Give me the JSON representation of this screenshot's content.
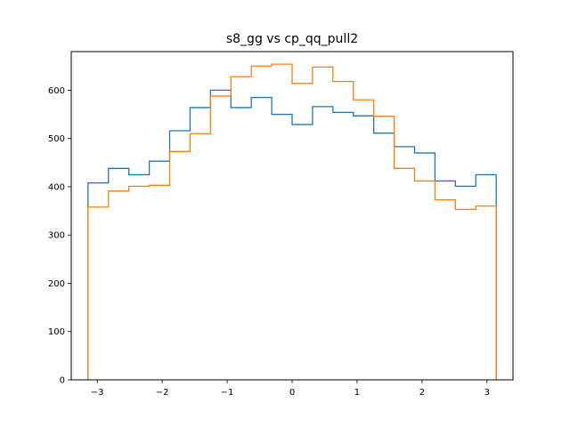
{
  "chart_data": {
    "type": "histogram",
    "title": "s8_gg vs cp_qq_pull2",
    "xlabel": "",
    "ylabel": "",
    "xlim": [
      -3.4,
      3.4
    ],
    "ylim": [
      0,
      680
    ],
    "x_ticks": [
      -3,
      -2,
      -1,
      0,
      1,
      2,
      3
    ],
    "x_tick_labels": [
      "−3",
      "−2",
      "−1",
      "0",
      "1",
      "2",
      "3"
    ],
    "y_ticks": [
      0,
      100,
      200,
      300,
      400,
      500,
      600
    ],
    "y_tick_labels": [
      "0",
      "100",
      "200",
      "300",
      "400",
      "500",
      "600"
    ],
    "grid": false,
    "bin_edges": [
      -3.1416,
      -2.8274,
      -2.5133,
      -2.1991,
      -1.885,
      -1.5708,
      -1.2566,
      -0.9425,
      -0.6283,
      -0.3142,
      0.0,
      0.3142,
      0.6283,
      0.9425,
      1.2566,
      1.5708,
      1.885,
      2.1991,
      2.5133,
      2.8274,
      3.1416
    ],
    "series": [
      {
        "color": "#1f77b4",
        "values": [
          408,
          438,
          425,
          453,
          516,
          564,
          600,
          564,
          585,
          550,
          529,
          566,
          554,
          547,
          511,
          483,
          470,
          412,
          401,
          425
        ]
      },
      {
        "color": "#ff7f0e",
        "values": [
          358,
          391,
          401,
          403,
          473,
          510,
          588,
          628,
          650,
          654,
          614,
          648,
          618,
          580,
          546,
          438,
          412,
          373,
          353,
          360
        ]
      }
    ]
  }
}
